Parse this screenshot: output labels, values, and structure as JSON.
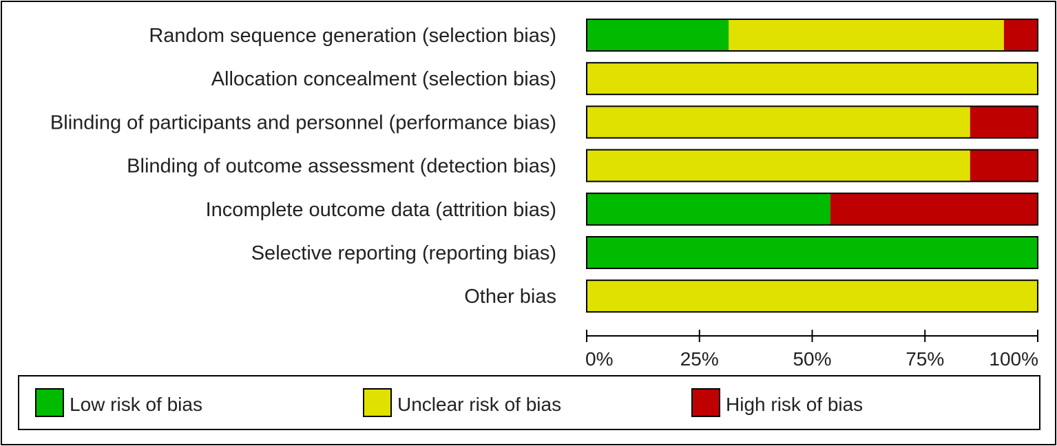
{
  "chart_data": {
    "type": "bar",
    "orientation": "horizontal",
    "stacked": true,
    "title": "",
    "xlabel": "",
    "ylabel": "",
    "xlim": [
      0,
      100
    ],
    "categories": [
      "Random sequence generation (selection bias)",
      "Allocation concealment (selection bias)",
      "Blinding of participants and personnel (performance bias)",
      "Blinding of outcome assessment (detection bias)",
      "Incomplete outcome data (attrition bias)",
      "Selective reporting (reporting bias)",
      "Other bias"
    ],
    "series": [
      {
        "name": "Low risk of bias",
        "color": "#00BB00",
        "values": [
          31.5,
          0,
          0,
          0,
          54,
          100,
          0
        ]
      },
      {
        "name": "Unclear risk of bias",
        "color": "#E1E100",
        "values": [
          61,
          100,
          85,
          85,
          0,
          0,
          100
        ]
      },
      {
        "name": "High risk of bias",
        "color": "#BF0000",
        "values": [
          7.5,
          0,
          15,
          15,
          46,
          0,
          0
        ]
      }
    ],
    "ticks": [
      0,
      25,
      50,
      75,
      100
    ],
    "tick_labels": [
      "0%",
      "25%",
      "50%",
      "75%",
      "100%"
    ],
    "grid": false,
    "legend_position": "bottom"
  }
}
